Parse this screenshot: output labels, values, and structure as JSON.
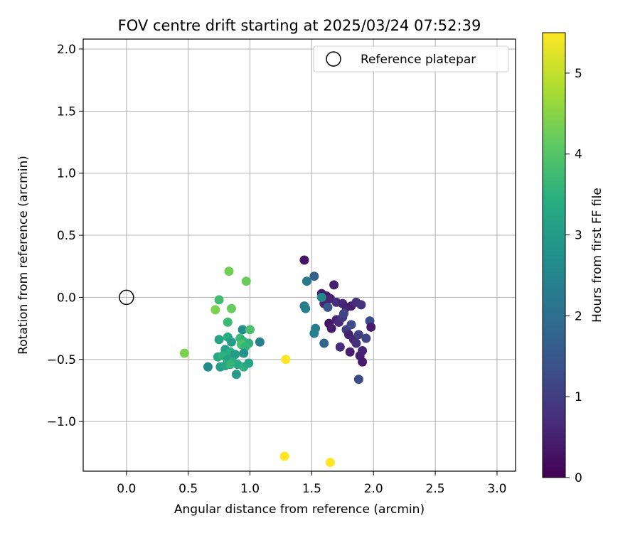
{
  "chart_data": {
    "type": "scatter",
    "title": "FOV centre drift starting at 2025/03/24 07:52:39",
    "xlabel": "Angular distance from reference (arcmin)",
    "ylabel": "Rotation from reference (arcmin)",
    "xlim": [
      -0.35,
      3.15
    ],
    "ylim": [
      -1.4,
      2.08
    ],
    "xticks": [
      "0.0",
      "0.5",
      "1.0",
      "1.5",
      "2.0",
      "2.5",
      "3.0"
    ],
    "xtick_values": [
      0,
      0.5,
      1,
      1.5,
      2,
      2.5,
      3
    ],
    "yticks": [
      "−1.0",
      "−0.5",
      "0.0",
      "0.5",
      "1.0",
      "1.5",
      "2.0"
    ],
    "ytick_values": [
      -1,
      -0.5,
      0,
      0.5,
      1,
      1.5,
      2
    ],
    "grid": true,
    "colormap": "viridis",
    "colorbar": {
      "label": "Hours from first FF file",
      "range": [
        0,
        5.5
      ],
      "ticks": [
        "0",
        "1",
        "2",
        "3",
        "4",
        "5"
      ],
      "tick_values": [
        0,
        1,
        2,
        3,
        4,
        5
      ]
    },
    "legend": {
      "position": "top-right",
      "entries": [
        {
          "label": "Reference platepar",
          "marker": "open-circle"
        }
      ]
    },
    "reference_point": {
      "x": 0,
      "y": 0
    },
    "points": [
      {
        "x": 1.44,
        "y": 0.3,
        "h": 0.3
      },
      {
        "x": 1.58,
        "y": 0.03,
        "h": 0.4
      },
      {
        "x": 1.62,
        "y": 0.01,
        "h": 0.35
      },
      {
        "x": 1.65,
        "y": -0.01,
        "h": 0.55
      },
      {
        "x": 1.68,
        "y": 0.1,
        "h": 0.5
      },
      {
        "x": 1.6,
        "y": -0.05,
        "h": 0.6
      },
      {
        "x": 1.7,
        "y": -0.04,
        "h": 0.7
      },
      {
        "x": 1.75,
        "y": -0.05,
        "h": 0.6
      },
      {
        "x": 1.78,
        "y": -0.08,
        "h": 0.55
      },
      {
        "x": 1.82,
        "y": -0.07,
        "h": 0.5
      },
      {
        "x": 1.86,
        "y": -0.04,
        "h": 0.7
      },
      {
        "x": 1.9,
        "y": -0.06,
        "h": 0.8
      },
      {
        "x": 1.64,
        "y": -0.21,
        "h": 0.3
      },
      {
        "x": 1.66,
        "y": -0.25,
        "h": 0.4
      },
      {
        "x": 1.7,
        "y": -0.18,
        "h": 0.55
      },
      {
        "x": 1.72,
        "y": -0.2,
        "h": 0.7
      },
      {
        "x": 1.75,
        "y": -0.16,
        "h": 0.9
      },
      {
        "x": 1.76,
        "y": -0.13,
        "h": 1.1
      },
      {
        "x": 1.78,
        "y": -0.26,
        "h": 1.0
      },
      {
        "x": 1.8,
        "y": -0.3,
        "h": 0.5
      },
      {
        "x": 1.82,
        "y": -0.22,
        "h": 1.2
      },
      {
        "x": 1.84,
        "y": -0.34,
        "h": 0.6
      },
      {
        "x": 1.86,
        "y": -0.37,
        "h": 0.8
      },
      {
        "x": 1.88,
        "y": -0.3,
        "h": 1.0
      },
      {
        "x": 1.94,
        "y": -0.33,
        "h": 1.1
      },
      {
        "x": 1.97,
        "y": -0.19,
        "h": 1.3
      },
      {
        "x": 1.98,
        "y": -0.24,
        "h": 0.4
      },
      {
        "x": 1.73,
        "y": -0.4,
        "h": 0.7
      },
      {
        "x": 1.81,
        "y": -0.44,
        "h": 0.45
      },
      {
        "x": 1.89,
        "y": -0.47,
        "h": 0.5
      },
      {
        "x": 1.91,
        "y": -0.43,
        "h": 0.55
      },
      {
        "x": 1.91,
        "y": -0.52,
        "h": 0.4
      },
      {
        "x": 1.88,
        "y": -0.66,
        "h": 1.2
      },
      {
        "x": 1.52,
        "y": 0.17,
        "h": 1.7
      },
      {
        "x": 1.46,
        "y": 0.13,
        "h": 2.2
      },
      {
        "x": 1.63,
        "y": -0.08,
        "h": 1.5
      },
      {
        "x": 1.44,
        "y": -0.07,
        "h": 2.2
      },
      {
        "x": 1.45,
        "y": -0.09,
        "h": 2.4
      },
      {
        "x": 1.58,
        "y": 0.0,
        "h": 2.6
      },
      {
        "x": 1.53,
        "y": -0.25,
        "h": 2.3
      },
      {
        "x": 1.52,
        "y": -0.29,
        "h": 2.4
      },
      {
        "x": 1.6,
        "y": -0.37,
        "h": 1.8
      },
      {
        "x": 0.83,
        "y": 0.21,
        "h": 4.3
      },
      {
        "x": 0.97,
        "y": 0.13,
        "h": 4.2
      },
      {
        "x": 0.75,
        "y": -0.02,
        "h": 3.8
      },
      {
        "x": 0.72,
        "y": -0.1,
        "h": 4.4
      },
      {
        "x": 0.85,
        "y": -0.09,
        "h": 4.2
      },
      {
        "x": 0.82,
        "y": -0.2,
        "h": 3.7
      },
      {
        "x": 0.94,
        "y": -0.26,
        "h": 2.7
      },
      {
        "x": 1.0,
        "y": -0.26,
        "h": 3.9
      },
      {
        "x": 0.75,
        "y": -0.34,
        "h": 3.2
      },
      {
        "x": 0.82,
        "y": -0.32,
        "h": 3.4
      },
      {
        "x": 0.85,
        "y": -0.36,
        "h": 3.0
      },
      {
        "x": 0.92,
        "y": -0.33,
        "h": 3.7
      },
      {
        "x": 0.94,
        "y": -0.35,
        "h": 3.6
      },
      {
        "x": 0.99,
        "y": -0.37,
        "h": 3.5
      },
      {
        "x": 1.08,
        "y": -0.36,
        "h": 2.4
      },
      {
        "x": 0.93,
        "y": -0.38,
        "h": 3.9
      },
      {
        "x": 0.96,
        "y": -0.4,
        "h": 3.6
      },
      {
        "x": 0.8,
        "y": -0.42,
        "h": 3.1
      },
      {
        "x": 0.84,
        "y": -0.44,
        "h": 3.4
      },
      {
        "x": 0.88,
        "y": -0.46,
        "h": 3.0
      },
      {
        "x": 0.95,
        "y": -0.45,
        "h": 2.8
      },
      {
        "x": 0.74,
        "y": -0.48,
        "h": 3.3
      },
      {
        "x": 0.78,
        "y": -0.47,
        "h": 3.5
      },
      {
        "x": 0.82,
        "y": -0.5,
        "h": 3.2
      },
      {
        "x": 0.86,
        "y": -0.52,
        "h": 3.4
      },
      {
        "x": 0.9,
        "y": -0.54,
        "h": 3.3
      },
      {
        "x": 0.95,
        "y": -0.56,
        "h": 3.5
      },
      {
        "x": 0.99,
        "y": -0.53,
        "h": 3.2
      },
      {
        "x": 0.66,
        "y": -0.56,
        "h": 2.6
      },
      {
        "x": 0.76,
        "y": -0.56,
        "h": 3.0
      },
      {
        "x": 0.8,
        "y": -0.55,
        "h": 3.3
      },
      {
        "x": 0.84,
        "y": -0.54,
        "h": 3.6
      },
      {
        "x": 0.89,
        "y": -0.62,
        "h": 3.0
      },
      {
        "x": 0.47,
        "y": -0.45,
        "h": 4.4
      },
      {
        "x": 1.29,
        "y": -0.5,
        "h": 5.5
      },
      {
        "x": 1.28,
        "y": -1.28,
        "h": 5.5
      },
      {
        "x": 1.65,
        "y": -1.33,
        "h": 5.5
      }
    ]
  }
}
